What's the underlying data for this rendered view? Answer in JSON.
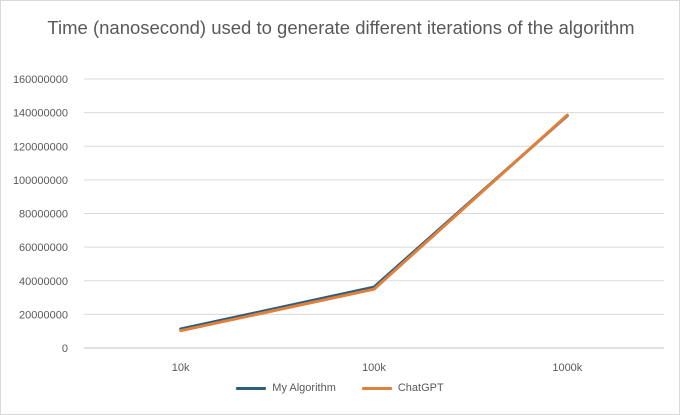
{
  "chart_data": {
    "type": "line",
    "title": "Time (nanosecond) used to generate different iterations of the algorithm",
    "categories": [
      "10k",
      "100k",
      "1000k"
    ],
    "series": [
      {
        "name": "My Algorithm",
        "values": [
          11300000,
          36200000,
          138200000
        ],
        "color": "#2E5E7E"
      },
      {
        "name": "ChatGPT",
        "values": [
          10300000,
          35000000,
          138500000
        ],
        "color": "#E0803B"
      }
    ],
    "ylim": [
      0,
      160000000
    ],
    "yticks": [
      "0",
      "20000000",
      "40000000",
      "60000000",
      "80000000",
      "100000000",
      "120000000",
      "140000000",
      "160000000"
    ],
    "grid": true,
    "legend": "bottom",
    "xlabel": "",
    "ylabel": ""
  }
}
